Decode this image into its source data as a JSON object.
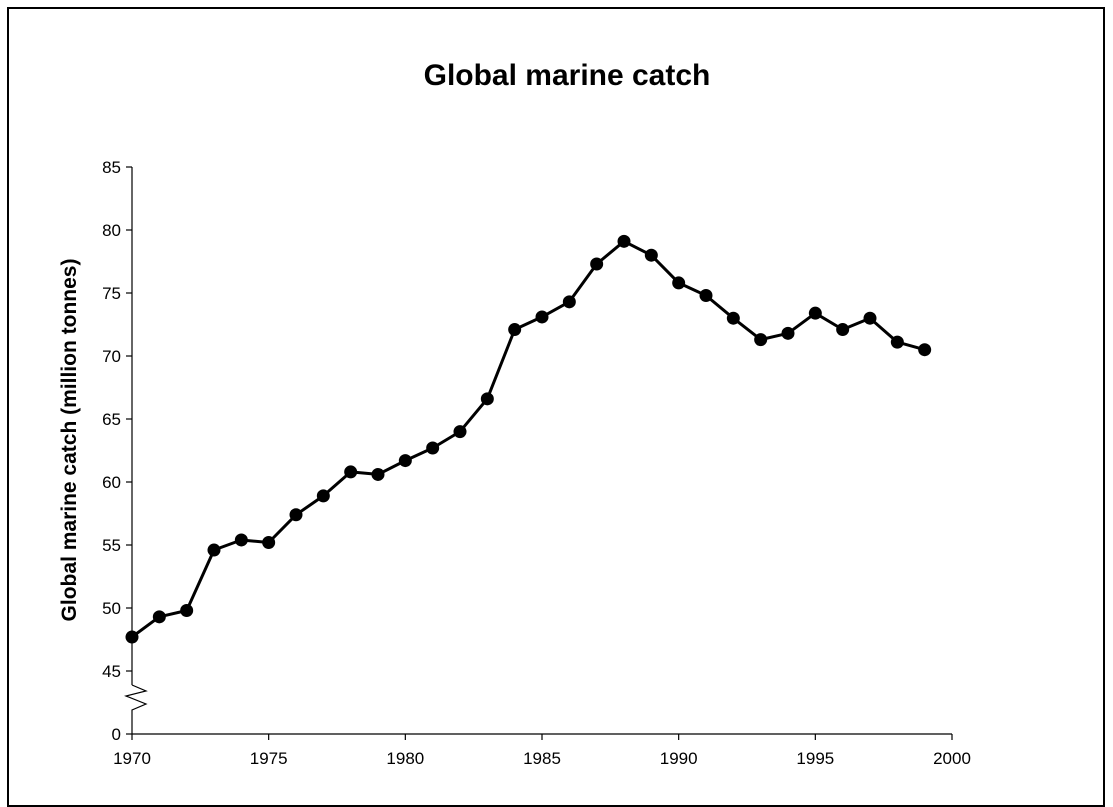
{
  "chart_data": {
    "type": "line",
    "title": "Global marine catch",
    "xlabel": "",
    "ylabel": "Global marine catch (million tonnes)",
    "xlim": [
      1970,
      2000
    ],
    "ylim": [
      45,
      85
    ],
    "axis_break": true,
    "y_break_label": "0",
    "x_ticks": [
      "1970",
      "1975",
      "1980",
      "1985",
      "1990",
      "1995",
      "2000"
    ],
    "y_ticks": [
      "45",
      "50",
      "55",
      "60",
      "65",
      "70",
      "75",
      "80",
      "85"
    ],
    "grid": false,
    "legend": "none",
    "color": "#000000",
    "series": [
      {
        "x": [
          1970,
          1971,
          1972,
          1973,
          1974,
          1975,
          1976,
          1977,
          1978,
          1979,
          1980,
          1981,
          1982,
          1983,
          1984,
          1985,
          1986,
          1987,
          1988,
          1989,
          1990,
          1991,
          1992,
          1993,
          1994,
          1995,
          1996,
          1997,
          1998,
          1999
        ],
        "y": [
          47.7,
          49.3,
          49.8,
          54.6,
          55.4,
          55.2,
          57.4,
          58.9,
          60.8,
          60.6,
          61.7,
          62.7,
          64.0,
          66.6,
          72.1,
          73.1,
          74.3,
          77.3,
          79.1,
          78.0,
          75.8,
          74.8,
          73.0,
          71.3,
          71.8,
          73.4,
          72.1,
          73.0,
          71.1,
          70.5
        ]
      }
    ]
  }
}
